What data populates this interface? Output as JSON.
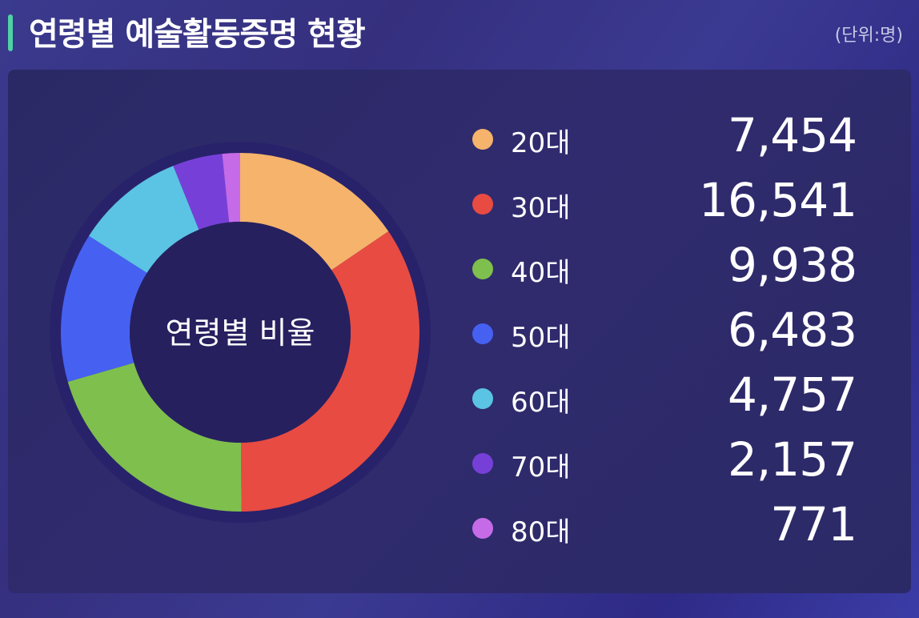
{
  "header": {
    "title": "연령별 예술활동증명 현황",
    "unit": "(단위:명)"
  },
  "chart_data": {
    "type": "pie",
    "center_label": "연령별 비율",
    "categories": [
      "20대",
      "30대",
      "40대",
      "50대",
      "60대",
      "70대",
      "80대"
    ],
    "values": [
      7454,
      16541,
      9938,
      6483,
      4757,
      2157,
      771
    ],
    "value_labels": [
      "7,454",
      "16,541",
      "9,938",
      "6,483",
      "4,757",
      "2,157",
      "771"
    ],
    "colors": [
      "#f5b36b",
      "#e84b42",
      "#7fbf4d",
      "#4660f2",
      "#5bc3e3",
      "#7640d8",
      "#c56be8"
    ],
    "legend_position": "right"
  }
}
